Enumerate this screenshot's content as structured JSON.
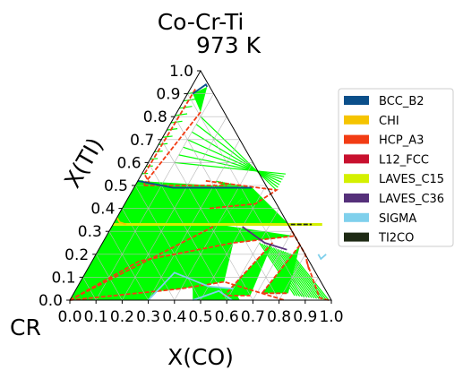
{
  "chart_data": {
    "type": "ternary",
    "title": "Co-Cr-Ti",
    "subtitle": "973  K",
    "xlabel": "X(CO)",
    "ylabel": "X(TI)",
    "corner_label": "CR",
    "ticks": [
      "0.0",
      "0.1",
      "0.2",
      "0.3",
      "0.4",
      "0.5",
      "0.6",
      "0.7",
      "0.8",
      "0.9",
      "1.0"
    ],
    "tick_values": [
      0,
      0.1,
      0.2,
      0.3,
      0.4,
      0.5,
      0.6,
      0.7,
      0.8,
      0.9,
      1.0
    ],
    "grid": true,
    "legend_position": "right",
    "legend": [
      {
        "name": "BCC_B2",
        "color": "#0b4f8a"
      },
      {
        "name": "CHI",
        "color": "#f5c400"
      },
      {
        "name": "HCP_A3",
        "color": "#f23c14"
      },
      {
        "name": "L12_FCC",
        "color": "#c8102e"
      },
      {
        "name": "LAVES_C15",
        "color": "#d4f000"
      },
      {
        "name": "LAVES_C36",
        "color": "#55307a"
      },
      {
        "name": "SIGMA",
        "color": "#7fd0ec"
      },
      {
        "name": "TI2CO",
        "color": "#1e2a14"
      }
    ],
    "tie_region_color": "#00ff00",
    "phase_boundaries": [
      {
        "phase": "HCP_A3",
        "color": "#f23c14",
        "points": [
          [
            0.0,
            0.0
          ],
          [
            0.4,
            0.33
          ],
          [
            0.67,
            0.33
          ],
          [
            0.72,
            0.28
          ],
          [
            0.8,
            0.2
          ],
          [
            0.85,
            0.13
          ]
        ]
      },
      {
        "phase": "HCP_A3",
        "color": "#f23c14",
        "points": [
          [
            0.0,
            0.0
          ],
          [
            0.18,
            0.17
          ],
          [
            0.5,
            0.25
          ],
          [
            0.72,
            0.28
          ]
        ]
      },
      {
        "phase": "HCP_A3",
        "color": "#f23c14",
        "points": [
          [
            0.0,
            0.0
          ],
          [
            0.4,
            0.05
          ],
          [
            0.55,
            0.08
          ],
          [
            0.82,
            0.0
          ]
        ]
      },
      {
        "phase": "HCP_A3",
        "color": "#f23c14",
        "points": [
          [
            0.09,
            0.82
          ],
          [
            0.03,
            0.5
          ],
          [
            0.15,
            0.5
          ],
          [
            0.35,
            0.5
          ]
        ]
      },
      {
        "phase": "HCP_A3",
        "color": "#f23c14",
        "points": [
          [
            0.02,
            0.92
          ],
          [
            0.01,
            0.55
          ],
          [
            0.05,
            0.51
          ]
        ]
      },
      {
        "phase": "HCP_A3",
        "color": "#f23c14",
        "points": [
          [
            0.26,
            0.52
          ],
          [
            0.55,
            0.48
          ],
          [
            0.5,
            0.42
          ],
          [
            0.33,
            0.4
          ]
        ]
      },
      {
        "phase": "HCP_A3",
        "color": "#f23c14",
        "points": [
          [
            0.65,
            0.25
          ],
          [
            0.58,
            0.02
          ],
          [
            0.68,
            0.02
          ]
        ]
      },
      {
        "phase": "HCP_A3",
        "color": "#f23c14",
        "points": [
          [
            0.76,
            0.24
          ],
          [
            0.72,
            0.03
          ],
          [
            0.82,
            0.03
          ]
        ]
      },
      {
        "phase": "HCP_A3",
        "color": "#f23c14",
        "points": [
          [
            0.82,
            0.17
          ],
          [
            0.95,
            0.01
          ],
          [
            0.99,
            0.0
          ]
        ]
      },
      {
        "phase": "BCC_B2",
        "color": "#0b4f8a",
        "points": [
          [
            0.0,
            0.52
          ],
          [
            0.15,
            0.49
          ],
          [
            0.45,
            0.49
          ]
        ]
      },
      {
        "phase": "BCC_B2",
        "color": "#0b4f8a",
        "points": [
          [
            0.02,
            0.9
          ],
          [
            0.05,
            0.94
          ],
          [
            0.06,
            0.93
          ]
        ]
      },
      {
        "phase": "SIGMA",
        "color": "#7fd0ec",
        "points": [
          [
            0.3,
            0.0
          ],
          [
            0.34,
            0.12
          ],
          [
            0.42,
            0.09
          ],
          [
            0.5,
            0.06
          ],
          [
            0.6,
            0.05
          ]
        ]
      },
      {
        "phase": "SIGMA",
        "color": "#7fd0ec",
        "points": [
          [
            0.47,
            0.0
          ],
          [
            0.55,
            0.04
          ],
          [
            0.62,
            0.0
          ]
        ]
      },
      {
        "phase": "SIGMA",
        "color": "#7fd0ec",
        "points": [
          [
            0.85,
            0.2
          ],
          [
            0.87,
            0.18
          ],
          [
            0.88,
            0.2
          ]
        ]
      },
      {
        "phase": "LAVES_C15",
        "color": "#d4f000",
        "points": [
          [
            0.0,
            0.33
          ],
          [
            0.8,
            0.33
          ]
        ]
      },
      {
        "phase": "CHI",
        "color": "#f5c400",
        "points": [
          [
            0.0,
            0.36
          ],
          [
            0.02,
            0.34
          ],
          [
            0.05,
            0.33
          ]
        ]
      },
      {
        "phase": "LAVES_C36",
        "color": "#55307a",
        "points": [
          [
            0.5,
            0.32
          ],
          [
            0.62,
            0.25
          ],
          [
            0.72,
            0.22
          ]
        ]
      },
      {
        "phase": "TI2CO",
        "color": "#1e2a14",
        "points": [
          [
            0.68,
            0.33
          ],
          [
            0.76,
            0.33
          ]
        ]
      }
    ]
  }
}
